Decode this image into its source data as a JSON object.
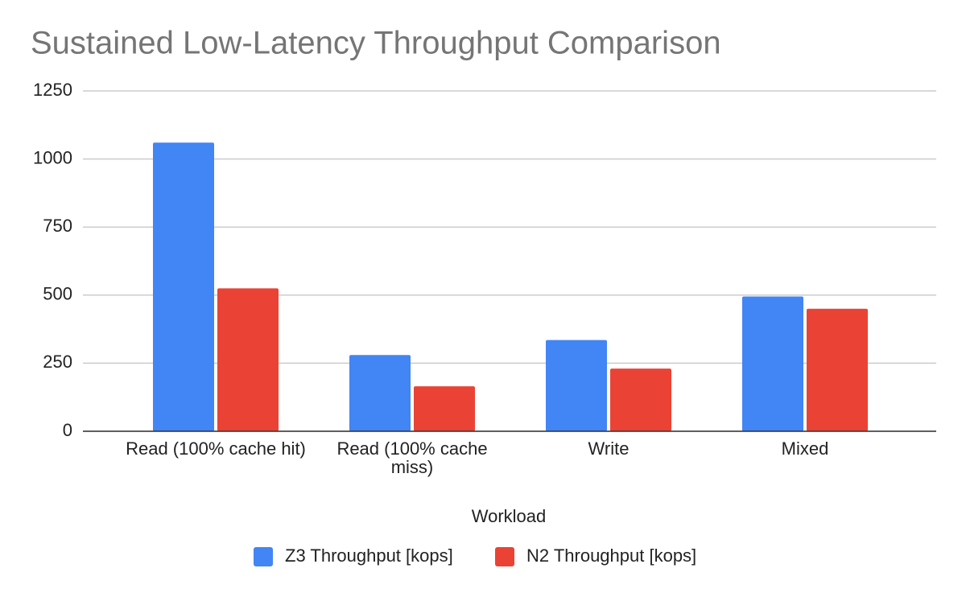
{
  "chart_data": {
    "type": "bar",
    "title": "Sustained Low-Latency Throughput Comparison",
    "x_label": "Workload",
    "categories": [
      "Read (100% cache hit)",
      "Read (100% cache miss)",
      "Write",
      "Mixed"
    ],
    "series": [
      {
        "name": "Z3 Throughput [kops]",
        "color": "#4285f4",
        "values": [
          1060,
          280,
          335,
          495
        ]
      },
      {
        "name": "N2 Throughput [kops]",
        "color": "#ea4335",
        "values": [
          525,
          165,
          230,
          450
        ]
      }
    ],
    "ylim": [
      0,
      1250
    ],
    "yticks": [
      0,
      250,
      500,
      750,
      1000,
      1250
    ],
    "grid": true,
    "legend": "bottom"
  }
}
